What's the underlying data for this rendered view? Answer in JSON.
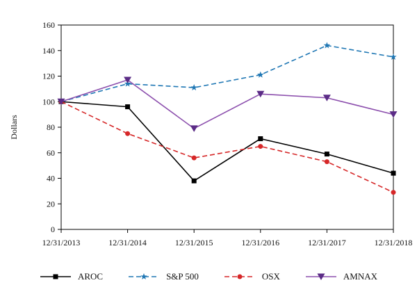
{
  "chart_data": {
    "type": "line",
    "title": "",
    "xlabel": "",
    "ylabel": "Dollars",
    "ylim": [
      0,
      160
    ],
    "ytick_step": 20,
    "grid": false,
    "legend_position": "bottom",
    "categories": [
      "12/31/2013",
      "12/31/2014",
      "12/31/2015",
      "12/31/2016",
      "12/31/2017",
      "12/31/2018"
    ],
    "series": [
      {
        "name": "AROC",
        "values": [
          100,
          96,
          38,
          71,
          59,
          44
        ],
        "color": "#000000",
        "line_style": "solid",
        "marker": "square",
        "marker_color": "#000000"
      },
      {
        "name": "S&P 500",
        "values": [
          100,
          114,
          111,
          121,
          144,
          135
        ],
        "color": "#1f77b4",
        "line_style": "dashed",
        "marker": "star",
        "marker_color": "#1f77b4"
      },
      {
        "name": "OSX",
        "values": [
          100,
          75,
          56,
          65,
          53,
          29
        ],
        "color": "#d62728",
        "line_style": "dashed",
        "marker": "circle",
        "marker_color": "#d62728"
      },
      {
        "name": "AMNAX",
        "values": [
          100,
          117,
          79,
          106,
          103,
          90
        ],
        "color": "#8c4fad",
        "line_style": "solid",
        "marker": "triangle-down",
        "marker_color": "#5b2c86"
      }
    ]
  }
}
